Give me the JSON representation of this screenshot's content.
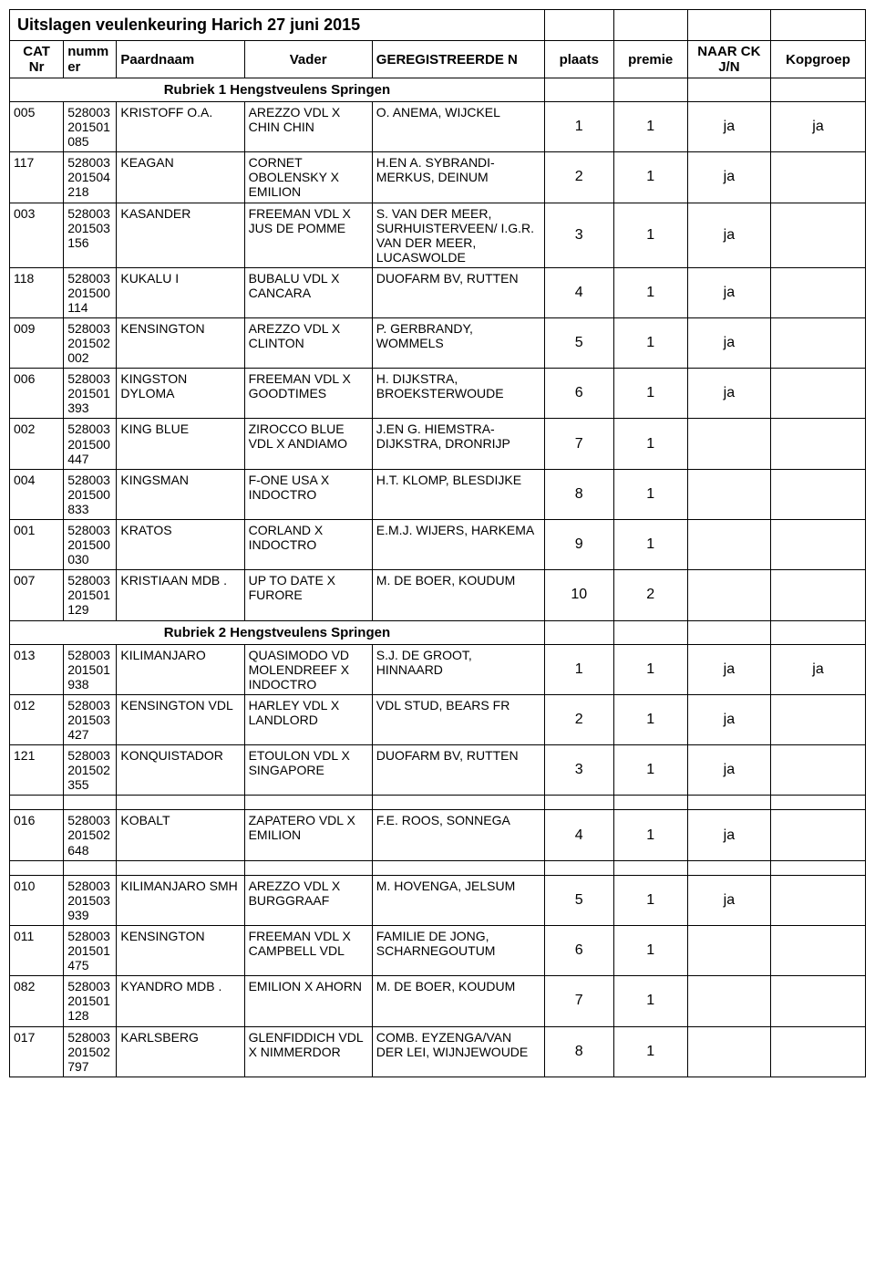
{
  "title": "Uitslagen veulenkeuring Harich 27 juni 2015",
  "headers": {
    "cat": "CAT Nr",
    "nummer": "numm er",
    "paardnaam": "Paardnaam",
    "vader": "Vader",
    "gereg": "GEREGISTREERDE N",
    "plaats": "plaats",
    "premie": "premie",
    "naar": "NAAR CK J/N",
    "kop": "Kopgroep"
  },
  "sections": [
    {
      "label": "Rubriek 1  Hengstveulens Springen",
      "rows": [
        {
          "cat": "005",
          "num": "528003 201501 085",
          "name": "KRISTOFF O.A.",
          "vader": "AREZZO VDL X CHIN CHIN",
          "reg": "O. ANEMA, WIJCKEL",
          "plaats": "1",
          "premie": "1",
          "naar": "ja",
          "kop": "ja"
        },
        {
          "cat": "117",
          "num": "528003 201504 218",
          "name": "KEAGAN",
          "vader": "CORNET OBOLENSKY X EMILION",
          "reg": "H.EN A. SYBRANDI-MERKUS, DEINUM",
          "plaats": "2",
          "premie": "1",
          "naar": "ja",
          "kop": ""
        },
        {
          "cat": "003",
          "num": "528003 201503 156",
          "name": "KASANDER",
          "vader": "FREEMAN VDL X JUS DE POMME",
          "reg": "S. VAN DER MEER, SURHUISTERVEEN/ I.G.R. VAN DER MEER, LUCASWOLDE",
          "plaats": "3",
          "premie": "1",
          "naar": "ja",
          "kop": ""
        },
        {
          "cat": "118",
          "num": "528003 201500 114",
          "name": "KUKALU I",
          "vader": "BUBALU VDL X CANCARA",
          "reg": "DUOFARM BV, RUTTEN",
          "plaats": "4",
          "premie": "1",
          "naar": "ja",
          "kop": ""
        },
        {
          "cat": "009",
          "num": "528003 201502 002",
          "name": "KENSINGTON",
          "vader": "AREZZO VDL X CLINTON",
          "reg": "P. GERBRANDY, WOMMELS",
          "plaats": "5",
          "premie": "1",
          "naar": "ja",
          "kop": ""
        },
        {
          "cat": "006",
          "num": "528003 201501 393",
          "name": "KINGSTON DYLOMA",
          "vader": "FREEMAN VDL X GOODTIMES",
          "reg": "H. DIJKSTRA, BROEKSTERWOUDE",
          "plaats": "6",
          "premie": "1",
          "naar": "ja",
          "kop": ""
        },
        {
          "cat": "002",
          "num": "528003 201500 447",
          "name": "KING BLUE",
          "vader": "ZIROCCO BLUE VDL X ANDIAMO",
          "reg": "J.EN G. HIEMSTRA-DIJKSTRA, DRONRIJP",
          "plaats": "7",
          "premie": "1",
          "naar": "",
          "kop": ""
        },
        {
          "cat": "004",
          "num": "528003 201500 833",
          "name": "KINGSMAN",
          "vader": "F-ONE USA X INDOCTRO",
          "reg": "H.T. KLOMP, BLESDIJKE",
          "plaats": "8",
          "premie": "1",
          "naar": "",
          "kop": ""
        },
        {
          "cat": "001",
          "num": "528003 201500 030",
          "name": "KRATOS",
          "vader": "CORLAND X INDOCTRO",
          "reg": "E.M.J. WIJERS, HARKEMA",
          "plaats": "9",
          "premie": "1",
          "naar": "",
          "kop": ""
        },
        {
          "cat": "007",
          "num": "528003 201501 129",
          "name": "KRISTIAAN  MDB .",
          "vader": "UP TO DATE X FURORE",
          "reg": "M. DE BOER, KOUDUM",
          "plaats": "10",
          "premie": "2",
          "naar": "",
          "kop": ""
        }
      ]
    },
    {
      "label": "Rubriek 2  Hengstveulens Springen",
      "rows": [
        {
          "cat": "013",
          "num": "528003 201501 938",
          "name": "KILIMANJARO",
          "vader": "QUASIMODO VD MOLENDREEF X INDOCTRO",
          "reg": "S.J. DE GROOT, HINNAARD",
          "plaats": "1",
          "premie": "1",
          "naar": "ja",
          "kop": "ja"
        },
        {
          "cat": "012",
          "num": "528003 201503 427",
          "name": "KENSINGTON VDL",
          "vader": "HARLEY VDL X LANDLORD",
          "reg": "VDL STUD, BEARS FR",
          "plaats": "2",
          "premie": "1",
          "naar": "ja",
          "kop": ""
        },
        {
          "cat": "121",
          "num": "528003 201502 355",
          "name": "KONQUISTADOR",
          "vader": "ETOULON VDL X SINGAPORE",
          "reg": "DUOFARM BV, RUTTEN",
          "plaats": "3",
          "premie": "1",
          "naar": "ja",
          "kop": ""
        },
        {
          "spacer": true
        },
        {
          "cat": "016",
          "num": "528003 201502 648",
          "name": "KOBALT",
          "vader": "ZAPATERO VDL X EMILION",
          "reg": "F.E. ROOS, SONNEGA",
          "plaats": "4",
          "premie": "1",
          "naar": "ja",
          "kop": ""
        },
        {
          "spacer": true
        },
        {
          "cat": "010",
          "num": "528003 201503 939",
          "name": "KILIMANJARO SMH",
          "vader": "AREZZO VDL X BURGGRAAF",
          "reg": "M. HOVENGA, JELSUM",
          "plaats": "5",
          "premie": "1",
          "naar": "ja",
          "kop": ""
        },
        {
          "cat": "011",
          "num": "528003 201501 475",
          "name": "KENSINGTON",
          "vader": "FREEMAN VDL X CAMPBELL VDL",
          "reg": "FAMILIE DE JONG, SCHARNEGOUTUM",
          "plaats": "6",
          "premie": "1",
          "naar": "",
          "kop": ""
        },
        {
          "cat": "082",
          "num": "528003 201501 128",
          "name": "KYANDRO  MDB .",
          "vader": "EMILION X AHORN",
          "reg": "M. DE BOER, KOUDUM",
          "plaats": "7",
          "premie": "1",
          "naar": "",
          "kop": ""
        },
        {
          "cat": "017",
          "num": "528003 201502 797",
          "name": "KARLSBERG",
          "vader": "GLENFIDDICH VDL X NIMMERDOR",
          "reg": "COMB. EYZENGA/VAN DER LEI, WIJNJEWOUDE",
          "plaats": "8",
          "premie": "1",
          "naar": "",
          "kop": ""
        }
      ]
    }
  ]
}
